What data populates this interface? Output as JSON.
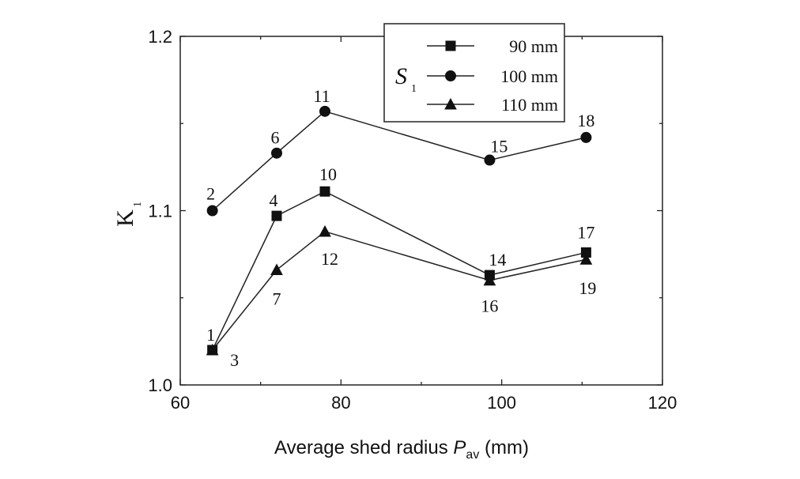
{
  "chart_data": {
    "type": "line",
    "title": "",
    "xlabel": {
      "prefix": "Average shed radius ",
      "symbol": "P",
      "subscript": "av",
      "suffix": " (mm)"
    },
    "ylabel": {
      "symbol": "K",
      "subscript": "1"
    },
    "xlim": [
      60,
      120
    ],
    "ylim": [
      1.0,
      1.2
    ],
    "x_ticks": [
      "60",
      "80",
      "100",
      "120"
    ],
    "y_ticks": [
      "1.0",
      "1.1",
      "1.2"
    ],
    "x_tick_values": [
      60,
      80,
      100,
      120
    ],
    "y_tick_values": [
      1.0,
      1.1,
      1.2
    ],
    "grid": false,
    "legend": {
      "position": "top-right",
      "group_symbol": "S",
      "group_subscript": "1"
    },
    "series": [
      {
        "name": "90 mm",
        "marker": "square",
        "points": [
          {
            "x": 64,
            "y": 1.02,
            "label": "1"
          },
          {
            "x": 72,
            "y": 1.097,
            "label": "4"
          },
          {
            "x": 78,
            "y": 1.111,
            "label": "10"
          },
          {
            "x": 98.5,
            "y": 1.063,
            "label": "14"
          },
          {
            "x": 110.5,
            "y": 1.076,
            "label": "17"
          }
        ]
      },
      {
        "name": "100 mm",
        "marker": "circle",
        "points": [
          {
            "x": 64,
            "y": 1.1,
            "label": "2"
          },
          {
            "x": 72,
            "y": 1.133,
            "label": "6"
          },
          {
            "x": 78,
            "y": 1.157,
            "label": "11"
          },
          {
            "x": 98.5,
            "y": 1.129,
            "label": "15"
          },
          {
            "x": 110.5,
            "y": 1.142,
            "label": "18"
          }
        ]
      },
      {
        "name": "110 mm",
        "marker": "triangle",
        "points": [
          {
            "x": 64,
            "y": 1.02,
            "label": "3"
          },
          {
            "x": 72,
            "y": 1.066,
            "label": "7"
          },
          {
            "x": 78,
            "y": 1.088,
            "label": "12"
          },
          {
            "x": 98.5,
            "y": 1.06,
            "label": "16"
          },
          {
            "x": 110.5,
            "y": 1.072,
            "label": "19"
          }
        ]
      }
    ]
  }
}
